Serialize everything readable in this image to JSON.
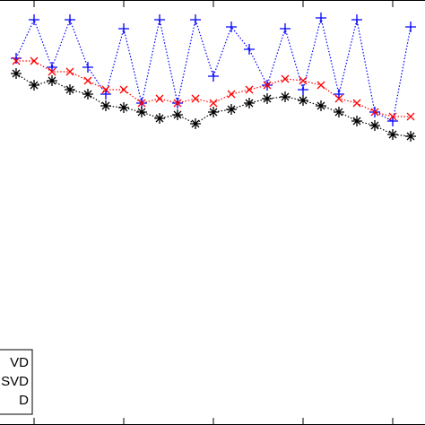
{
  "chart_data": {
    "type": "line",
    "x": [
      1,
      2,
      3,
      4,
      5,
      6,
      7,
      8,
      9,
      10,
      11,
      12,
      13,
      14,
      15,
      16,
      17,
      18,
      19,
      20,
      21,
      22,
      23
    ],
    "series": [
      {
        "name": "VD",
        "color": "#0000ff",
        "marker": "+",
        "values": [
          409,
          452,
          399,
          452,
          399,
          369,
          442,
          359,
          452,
          359,
          452,
          389,
          444,
          419,
          379,
          442,
          374,
          454,
          369,
          452,
          349,
          339,
          444
        ]
      },
      {
        "name": "SVD",
        "color": "#ff0000",
        "marker": "x",
        "values": [
          406,
          406,
          394,
          394,
          384,
          374,
          374,
          359,
          364,
          359,
          364,
          359,
          369,
          374,
          379,
          386,
          384,
          379,
          364,
          359,
          349,
          344,
          344
        ]
      },
      {
        "name": "D",
        "color": "#000000",
        "marker": "*",
        "values": [
          392,
          379,
          384,
          374,
          369,
          356,
          354,
          349,
          342,
          346,
          336,
          349,
          352,
          359,
          364,
          366,
          362,
          356,
          349,
          339,
          334,
          324,
          322
        ]
      }
    ],
    "xlim": [
      0.1,
      23.8
    ],
    "xticks": [
      2,
      7,
      12,
      17,
      22
    ],
    "ylim": [
      0,
      474
    ]
  }
}
